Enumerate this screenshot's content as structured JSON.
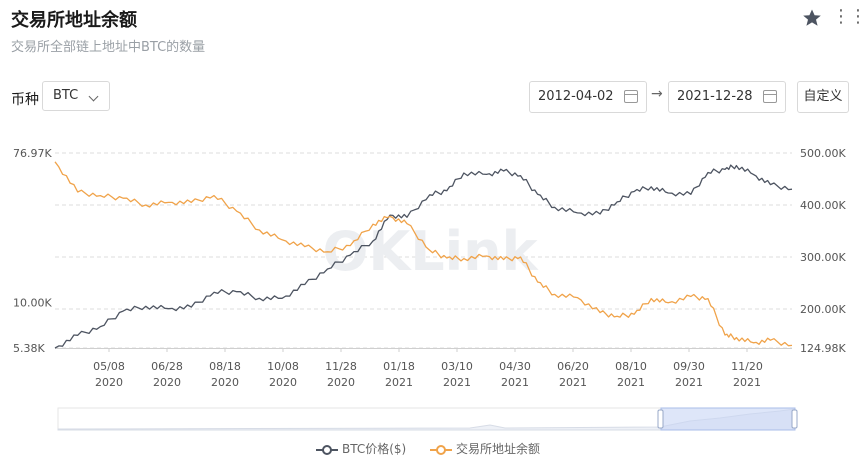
{
  "header": {
    "title": "交易所地址余额",
    "subtitle": "交易所全部链上地址中BTC的数量"
  },
  "icons": {
    "star": "star-icon",
    "more": "more-icon",
    "calendar": "calendar-icon",
    "arrow": "arrow-right-icon",
    "chevron": "chevron-down-icon"
  },
  "toolbar": {
    "coin_label": "币种",
    "coin_value": "BTC",
    "start_date": "2012-04-02",
    "end_date": "2021-12-28",
    "custom_label": "自定义"
  },
  "watermark": "OKLink",
  "colors": {
    "price": "#4d5461",
    "balance": "#f0a34a",
    "grid": "#dcdcdc",
    "brush": "#c8d6f5"
  },
  "chart_data": {
    "type": "line",
    "x_ticks": [
      {
        "date": "05/08",
        "year": "2020"
      },
      {
        "date": "06/28",
        "year": "2020"
      },
      {
        "date": "08/18",
        "year": "2020"
      },
      {
        "date": "10/08",
        "year": "2020"
      },
      {
        "date": "11/28",
        "year": "2020"
      },
      {
        "date": "01/18",
        "year": "2021"
      },
      {
        "date": "03/10",
        "year": "2021"
      },
      {
        "date": "04/30",
        "year": "2021"
      },
      {
        "date": "06/20",
        "year": "2021"
      },
      {
        "date": "08/10",
        "year": "2021"
      },
      {
        "date": "09/30",
        "year": "2021"
      },
      {
        "date": "11/20",
        "year": "2021"
      }
    ],
    "x_range": [
      "2020-03-19",
      "2021-12-28"
    ],
    "left_axis": {
      "ticks": [
        "76.97K",
        "10.00K",
        "5.38K"
      ],
      "scale": "log",
      "range": [
        5380,
        76970
      ]
    },
    "right_axis": {
      "ticks": [
        "500.00K",
        "400.00K",
        "300.00K",
        "200.00K",
        "124.98K"
      ],
      "range": [
        124980,
        500000
      ]
    },
    "grid": true,
    "legend_position": "bottom-center",
    "series": [
      {
        "name": "BTC价格($)",
        "axis": "left",
        "x": [
          "2020-03-19",
          "2020-04-08",
          "2020-04-28",
          "2020-05-18",
          "2020-06-07",
          "2020-06-27",
          "2020-07-17",
          "2020-08-06",
          "2020-08-26",
          "2020-09-15",
          "2020-10-05",
          "2020-10-25",
          "2020-11-14",
          "2020-12-04",
          "2020-12-24",
          "2021-01-08",
          "2021-01-23",
          "2021-02-12",
          "2021-02-27",
          "2021-03-14",
          "2021-04-03",
          "2021-04-18",
          "2021-05-03",
          "2021-05-18",
          "2021-06-02",
          "2021-06-22",
          "2021-07-12",
          "2021-07-27",
          "2021-08-11",
          "2021-08-26",
          "2021-09-10",
          "2021-09-30",
          "2021-10-15",
          "2021-10-30",
          "2021-11-09",
          "2021-11-24",
          "2021-12-09",
          "2021-12-28"
        ],
        "values": [
          5380,
          6400,
          7200,
          8900,
          9500,
          9200,
          9400,
          11500,
          11600,
          10600,
          10600,
          12800,
          15800,
          19100,
          23200,
          33000,
          32000,
          43500,
          46000,
          58600,
          57500,
          60200,
          56500,
          43800,
          36700,
          34000,
          33500,
          39500,
          45500,
          48500,
          44600,
          43800,
          59000,
          61500,
          64800,
          57500,
          50000,
          47000
        ]
      },
      {
        "name": "交易所地址余额",
        "axis": "right",
        "x": [
          "2020-03-19",
          "2020-04-08",
          "2020-04-28",
          "2020-05-18",
          "2020-06-07",
          "2020-06-27",
          "2020-07-17",
          "2020-08-06",
          "2020-08-26",
          "2020-09-15",
          "2020-10-05",
          "2020-10-25",
          "2020-11-14",
          "2020-12-04",
          "2020-12-24",
          "2021-01-08",
          "2021-01-23",
          "2021-02-12",
          "2021-02-27",
          "2021-03-14",
          "2021-04-03",
          "2021-04-18",
          "2021-05-03",
          "2021-05-18",
          "2021-06-02",
          "2021-06-22",
          "2021-07-12",
          "2021-07-27",
          "2021-08-11",
          "2021-08-26",
          "2021-09-10",
          "2021-09-30",
          "2021-10-15",
          "2021-10-30",
          "2021-11-09",
          "2021-11-24",
          "2021-12-09",
          "2021-12-28"
        ],
        "values": [
          483000,
          425000,
          418000,
          413000,
          400000,
          405000,
          405000,
          418000,
          388000,
          352000,
          333000,
          320000,
          310000,
          322000,
          363000,
          378000,
          364000,
          313000,
          298000,
          297000,
          302000,
          295000,
          300000,
          252000,
          228000,
          222000,
          193000,
          186000,
          190000,
          220000,
          212000,
          224000,
          220000,
          150000,
          145000,
          135000,
          140000,
          130000
        ]
      }
    ]
  }
}
